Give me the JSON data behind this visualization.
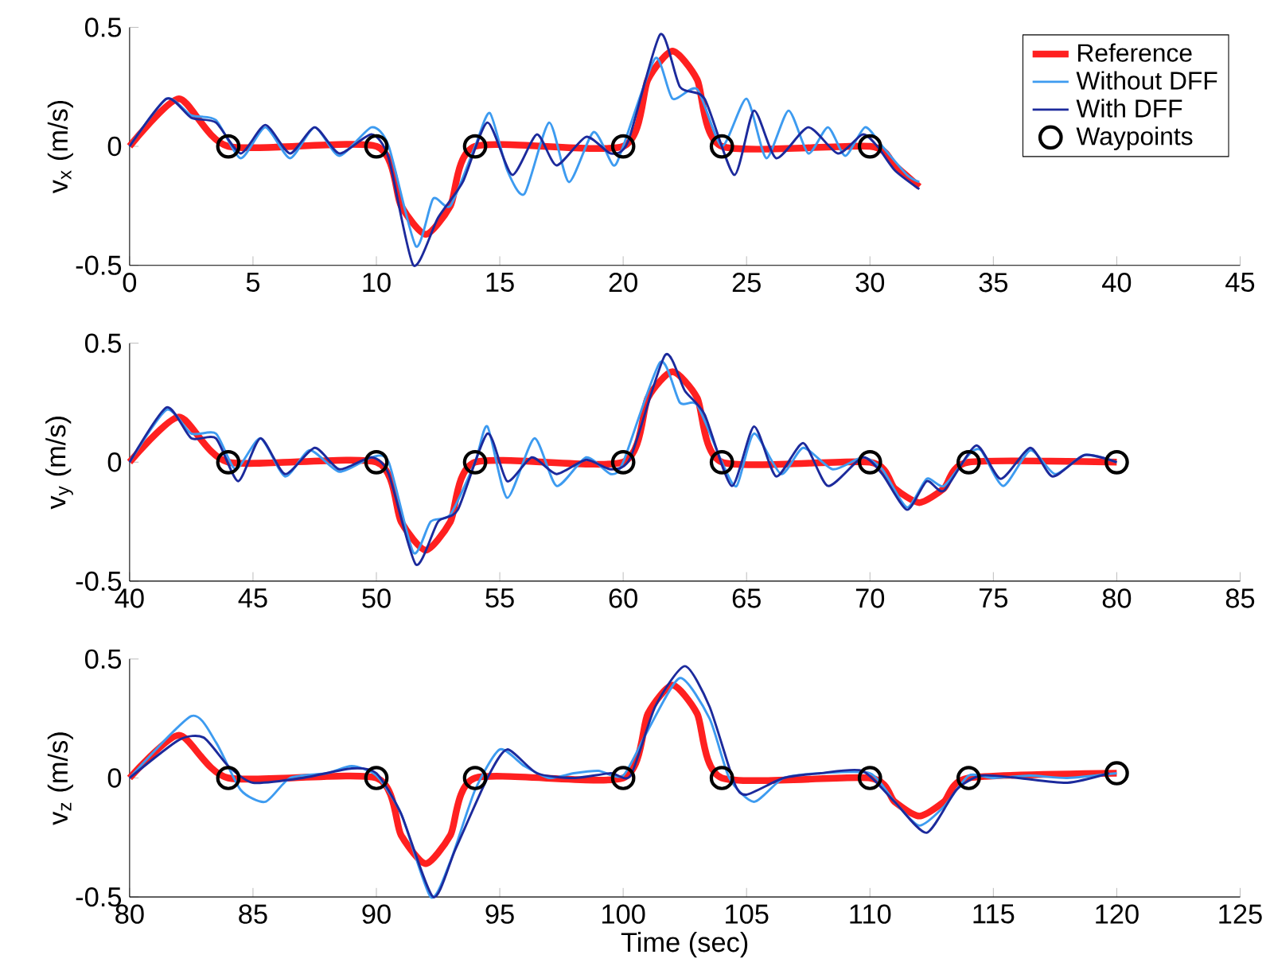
{
  "chart_data": [
    {
      "type": "line",
      "ylabel": "v$_{x}$ (m/s)",
      "xlim": [
        0,
        45
      ],
      "ylim": [
        -0.5,
        0.5
      ],
      "xticks": [
        0,
        5,
        10,
        15,
        20,
        25,
        30,
        35,
        40,
        45
      ],
      "yticks": [
        -0.5,
        0,
        0.5
      ],
      "legend": "top right",
      "grid": false,
      "series": [
        {
          "name": "Reference",
          "color": "#ff2020",
          "x": [
            0,
            2,
            4,
            10,
            11,
            12,
            13,
            14,
            20,
            21,
            22,
            23,
            24,
            30,
            31,
            32
          ],
          "values": [
            0,
            0.2,
            0,
            0,
            -0.25,
            -0.37,
            -0.25,
            0,
            0,
            0.28,
            0.4,
            0.28,
            0,
            0,
            -0.08,
            -0.17
          ]
        },
        {
          "name": "Without DFF",
          "color": "#3d9bf0",
          "x": [
            0,
            1.5,
            2.5,
            3.5,
            4.5,
            5.5,
            6.5,
            7.5,
            8.5,
            9.8,
            10.5,
            11.6,
            12.3,
            13,
            14,
            14.6,
            15.3,
            16,
            17,
            17.8,
            18.8,
            19.6,
            20,
            21.3,
            22,
            23,
            24,
            25,
            25.8,
            26.7,
            27.5,
            28.3,
            29,
            29.8,
            30.5,
            31.5,
            32
          ],
          "values": [
            0,
            0.2,
            0.13,
            0.11,
            -0.05,
            0.08,
            -0.05,
            0.08,
            -0.04,
            0.08,
            0,
            -0.42,
            -0.22,
            -0.25,
            0,
            0.14,
            -0.1,
            -0.2,
            0.1,
            -0.15,
            0.06,
            -0.08,
            0,
            0.37,
            0.2,
            0.24,
            0,
            0.2,
            -0.05,
            0.15,
            -0.03,
            0.08,
            -0.04,
            0.08,
            0,
            -0.12,
            -0.15
          ]
        },
        {
          "name": "With DFF",
          "color": "#1c2a9c",
          "x": [
            0,
            1.5,
            2.5,
            3.5,
            4.5,
            5.5,
            6.5,
            7.5,
            8.5,
            9.8,
            10.5,
            11.5,
            12.5,
            13.5,
            14.5,
            15.5,
            16.5,
            17.3,
            18.5,
            19.5,
            20.2,
            21.5,
            22.3,
            23.3,
            24.5,
            25.3,
            26.2,
            27.5,
            28.7,
            29.7,
            30.3,
            31,
            32
          ],
          "values": [
            0,
            0.2,
            0.12,
            0.1,
            -0.03,
            0.09,
            -0.03,
            0.08,
            -0.03,
            0.05,
            -0.05,
            -0.5,
            -0.3,
            -0.15,
            0.1,
            -0.12,
            0.05,
            -0.08,
            0.04,
            -0.03,
            0.02,
            0.47,
            0.25,
            0.2,
            -0.12,
            0.15,
            -0.05,
            0.08,
            -0.03,
            0.05,
            0,
            -0.1,
            -0.18
          ]
        },
        {
          "name": "Waypoints",
          "type": "scatter",
          "marker": "circle",
          "color": "#000000",
          "x": [
            4,
            10,
            14,
            20,
            24,
            30
          ],
          "values": [
            0,
            0,
            0,
            0,
            0,
            0
          ]
        }
      ]
    },
    {
      "type": "line",
      "ylabel": "v$_{y}$ (m/s)",
      "xlim": [
        40,
        85
      ],
      "ylim": [
        -0.5,
        0.5
      ],
      "xticks": [
        40,
        45,
        50,
        55,
        60,
        65,
        70,
        75,
        80,
        85
      ],
      "yticks": [
        -0.5,
        0,
        0.5
      ],
      "legend": false,
      "grid": false,
      "series": [
        {
          "color": "#ff2020",
          "x": [
            40,
            42,
            44,
            50,
            51,
            52,
            53,
            54,
            60,
            61,
            62,
            63,
            64,
            70,
            71,
            72,
            73,
            74,
            80
          ],
          "values": [
            0,
            0.19,
            0,
            0,
            -0.25,
            -0.37,
            -0.25,
            0,
            0,
            0.27,
            0.38,
            0.27,
            0,
            0,
            -0.11,
            -0.17,
            -0.11,
            0,
            0
          ]
        },
        {
          "color": "#3d9bf0",
          "x": [
            40,
            41.5,
            42.5,
            43.5,
            44.3,
            45.3,
            46.3,
            47.3,
            48.5,
            49.8,
            50.5,
            51.5,
            52.2,
            53,
            54,
            54.5,
            55.3,
            56.4,
            57.3,
            58.5,
            59.5,
            60,
            61.5,
            62.3,
            63,
            64,
            64.6,
            65.3,
            66.4,
            67.3,
            68.5,
            69.7,
            70.5,
            71.5,
            72.3,
            73,
            74,
            74.5,
            75.4,
            76.5,
            77.5,
            78.7,
            80
          ],
          "values": [
            0,
            0.22,
            0.12,
            0.12,
            -0.03,
            0.1,
            -0.06,
            0.05,
            -0.04,
            0.02,
            0,
            -0.38,
            -0.25,
            -0.22,
            0,
            0.15,
            -0.15,
            0.1,
            -0.1,
            0.02,
            -0.05,
            0,
            0.42,
            0.25,
            0.24,
            0,
            -0.1,
            0.12,
            -0.05,
            0.06,
            -0.03,
            0.02,
            -0.03,
            -0.19,
            -0.07,
            -0.1,
            0.03,
            0.05,
            -0.1,
            0.05,
            -0.05,
            0.03,
            0
          ]
        },
        {
          "color": "#1c2a9c",
          "x": [
            40,
            41.5,
            42.5,
            43.5,
            44.4,
            45.3,
            46.3,
            47.5,
            48.5,
            49.8,
            50.5,
            51.6,
            52.5,
            53.3,
            54.5,
            55.3,
            56.3,
            57.3,
            58.5,
            59.5,
            60.3,
            61.7,
            62.5,
            63.3,
            64.4,
            65.3,
            66.2,
            67.3,
            68.3,
            69.7,
            70.5,
            71.5,
            72.3,
            73,
            74.3,
            75.3,
            76.5,
            77.4,
            78.7,
            80
          ],
          "values": [
            0,
            0.23,
            0.1,
            0.1,
            -0.08,
            0.1,
            -0.05,
            0.06,
            -0.03,
            0.02,
            -0.05,
            -0.43,
            -0.25,
            -0.2,
            0.12,
            -0.08,
            0.02,
            -0.05,
            0.01,
            -0.03,
            0.02,
            0.45,
            0.3,
            0.2,
            -0.1,
            0.15,
            -0.06,
            0.08,
            -0.1,
            0.02,
            -0.05,
            -0.2,
            -0.08,
            -0.12,
            0.07,
            -0.07,
            0.06,
            -0.06,
            0.03,
            0
          ]
        },
        {
          "type": "scatter",
          "marker": "circle",
          "color": "#000000",
          "x": [
            44,
            50,
            54,
            60,
            64,
            70,
            74,
            80
          ],
          "values": [
            0,
            0,
            0,
            0,
            0,
            0,
            0,
            0
          ]
        }
      ]
    },
    {
      "type": "line",
      "ylabel": "v$_{z}$ (m/s)",
      "xlabel": "Time (sec)",
      "xlim": [
        80,
        125
      ],
      "ylim": [
        -0.5,
        0.5
      ],
      "xticks": [
        80,
        85,
        90,
        95,
        100,
        105,
        110,
        115,
        120,
        125
      ],
      "yticks": [
        -0.5,
        0,
        0.5
      ],
      "legend": false,
      "grid": false,
      "series": [
        {
          "color": "#ff2020",
          "x": [
            80,
            82,
            84,
            90,
            91,
            92,
            93,
            94,
            100,
            101,
            102,
            103,
            104,
            110,
            111,
            112,
            113,
            114,
            120
          ],
          "values": [
            0,
            0.18,
            0,
            0,
            -0.24,
            -0.36,
            -0.24,
            0,
            0,
            0.27,
            0.39,
            0.27,
            0,
            0,
            -0.1,
            -0.16,
            -0.1,
            0,
            0.02
          ]
        },
        {
          "color": "#3d9bf0",
          "x": [
            80,
            82.5,
            83.5,
            84.5,
            85.5,
            86.5,
            88,
            89,
            90,
            91,
            92.2,
            93,
            94,
            95,
            96,
            97,
            98,
            99,
            100,
            101,
            102.3,
            103.5,
            104.3,
            105.3,
            106.5,
            108,
            110,
            111,
            112,
            113,
            114,
            115,
            116.5,
            118,
            120
          ],
          "values": [
            0,
            0.26,
            0.15,
            -0.05,
            -0.1,
            0,
            0.02,
            0.05,
            0.01,
            -0.15,
            -0.5,
            -0.35,
            -0.05,
            0.12,
            0.05,
            0,
            0.02,
            0.03,
            0.01,
            0.2,
            0.42,
            0.25,
            0,
            -0.1,
            0,
            0.02,
            0.02,
            -0.1,
            -0.2,
            -0.12,
            0.01,
            0,
            0.01,
            0,
            0.02
          ]
        },
        {
          "color": "#1c2a9c",
          "x": [
            80,
            82,
            83,
            84,
            85,
            87,
            89,
            90,
            91,
            92.3,
            93.2,
            94.5,
            95.3,
            96.5,
            98,
            99.5,
            100.3,
            101.3,
            102.5,
            103.5,
            104.5,
            105,
            106.5,
            108,
            109.7,
            111,
            112.3,
            113.5,
            114.5,
            116,
            118,
            119.7
          ],
          "values": [
            0,
            0.16,
            0.17,
            0.05,
            -0.02,
            0,
            0.04,
            0.02,
            -0.15,
            -0.5,
            -0.3,
            0,
            0.12,
            0.02,
            0,
            0.02,
            0.01,
            0.3,
            0.47,
            0.3,
            -0.02,
            -0.07,
            0,
            0.02,
            0.03,
            -0.1,
            -0.23,
            -0.05,
            0.01,
            0,
            -0.02,
            0.02
          ]
        },
        {
          "type": "scatter",
          "marker": "circle",
          "color": "#000000",
          "x": [
            84,
            90,
            94,
            100,
            104,
            110,
            114,
            120
          ],
          "values": [
            0,
            0,
            0,
            0,
            0,
            0,
            0,
            0.02
          ]
        }
      ]
    }
  ]
}
